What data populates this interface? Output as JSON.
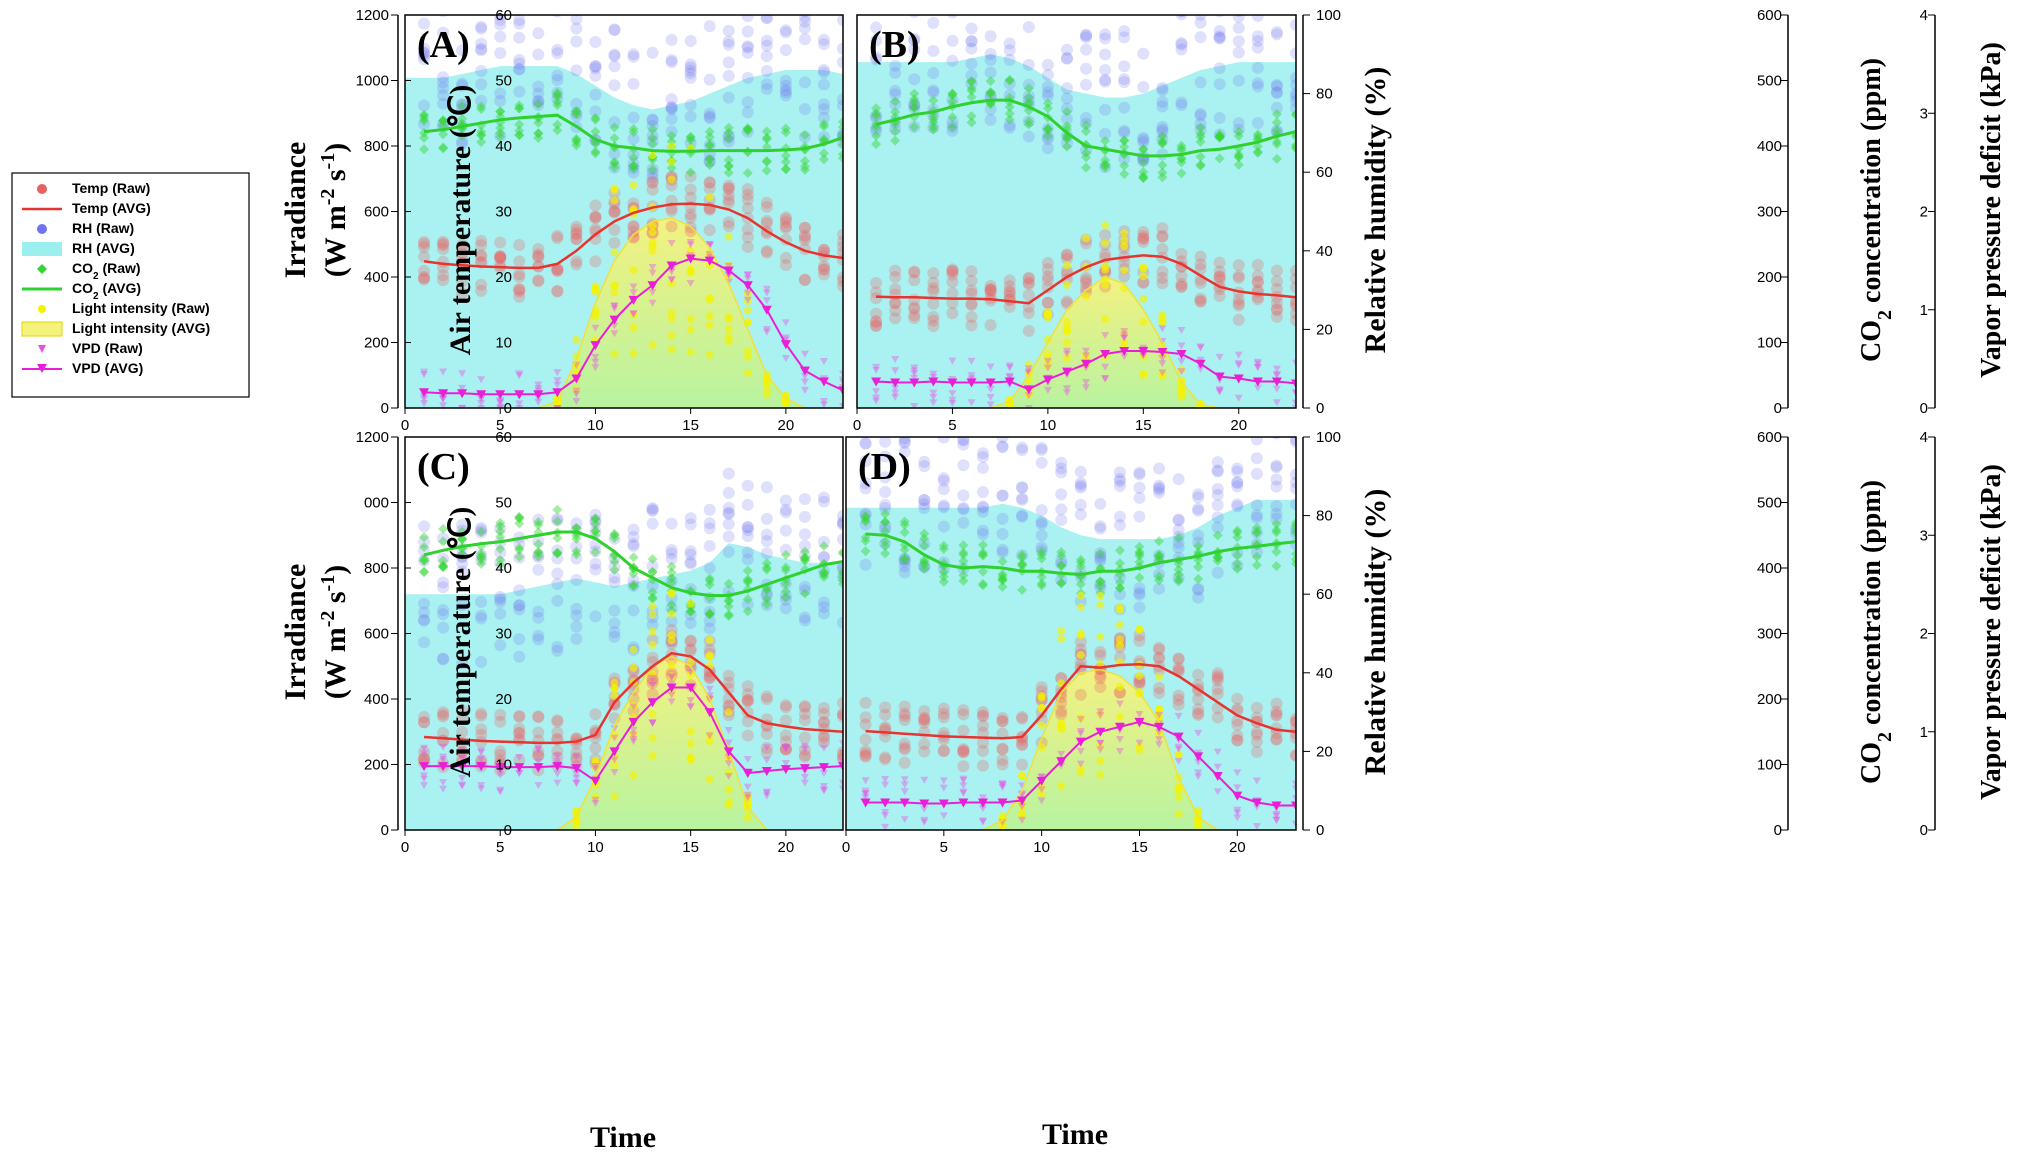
{
  "chart_data": {
    "type": "line",
    "series_styles": {
      "temp": "#e8332e",
      "rh": "#9befef",
      "co2": "#2ed12e",
      "light": "#f3f27a",
      "vpd": "#e91fd8",
      "rh_raw": "#6f73ef",
      "temp_raw": "#e86060",
      "co2_raw": "#33d633",
      "light_raw": "#f4f200",
      "vpd_raw": "#e54ee5"
    },
    "legend": [
      {
        "key": "temp_raw",
        "label": "Temp (Raw)"
      },
      {
        "key": "temp_avg",
        "label": "Temp (AVG)"
      },
      {
        "key": "rh_raw",
        "label": "RH (Raw)"
      },
      {
        "key": "rh_avg",
        "label": "RH (AVG)"
      },
      {
        "key": "co2_raw",
        "label": "CO",
        "sub": "2",
        "suffix": " (Raw)"
      },
      {
        "key": "co2_avg",
        "label": "CO",
        "sub": "2",
        "suffix": " (AVG)"
      },
      {
        "key": "light_raw",
        "label": "Light intensity (Raw)"
      },
      {
        "key": "light_avg",
        "label": "Light intensity (AVG)"
      },
      {
        "key": "vpd_raw",
        "label": "VPD (Raw)"
      },
      {
        "key": "vpd_avg",
        "label": "VPD (AVG)"
      }
    ],
    "axes": {
      "x": {
        "label": "Time",
        "ticks": [
          "0",
          "5",
          "10",
          "15",
          "20"
        ],
        "range": [
          0,
          23
        ]
      },
      "irradiance": {
        "label": "Irradiance",
        "label2_main": "(W m",
        "label2_sup1": "-2",
        "label2_mid": " s",
        "label2_sup2": "-1",
        "label2_end": ")",
        "range": [
          0,
          1200
        ],
        "ticks_top": [
          "0",
          "200",
          "400",
          "600",
          "800",
          "1000",
          "1200"
        ],
        "ticks_bottom": [
          "0",
          "200",
          "400",
          "600",
          "800",
          "000",
          "1200"
        ]
      },
      "temperature": {
        "label": "Air temperature (",
        "label_unit": "℃)",
        "range": [
          0,
          60
        ],
        "ticks": [
          "0",
          "10",
          "20",
          "30",
          "40",
          "50",
          "60"
        ]
      },
      "rh": {
        "label": "Relative humidity (%)",
        "range": [
          0,
          100
        ],
        "ticks": [
          "0",
          "20",
          "40",
          "60",
          "80",
          "100"
        ]
      },
      "co2": {
        "label": "CO",
        "label_sub": "2",
        "label_end": " concentration (ppm)",
        "range": [
          0,
          600
        ],
        "ticks": [
          "0",
          "100",
          "200",
          "300",
          "400",
          "500",
          "600"
        ]
      },
      "vpd": {
        "label": "Vapor pressure deficit (kPa)",
        "range": [
          0,
          4
        ],
        "ticks": [
          "0",
          "1",
          "2",
          "3",
          "4"
        ]
      }
    },
    "panels": [
      {
        "label": "(A)",
        "x": [
          1,
          2,
          3,
          4,
          5,
          6,
          7,
          8,
          9,
          10,
          11,
          12,
          13,
          14,
          15,
          16,
          17,
          18,
          19,
          20,
          21,
          22,
          23
        ],
        "temp": [
          22.4,
          22.0,
          21.8,
          21.6,
          21.5,
          21.4,
          21.4,
          22.0,
          24.0,
          26.5,
          28.5,
          29.8,
          30.6,
          31.1,
          31.2,
          31.0,
          30.3,
          29.0,
          27.0,
          25.3,
          24.0,
          23.3,
          22.9
        ],
        "rh": [
          84,
          84,
          85,
          86,
          87,
          87,
          87,
          87,
          85,
          82,
          79,
          77,
          76,
          77,
          78,
          80,
          82,
          84,
          85,
          86,
          86,
          86,
          85
        ],
        "co2": [
          422,
          425,
          430,
          435,
          440,
          443,
          445,
          447,
          430,
          410,
          400,
          397,
          393,
          392,
          392,
          393,
          393,
          393,
          393,
          394,
          396,
          403,
          413
        ],
        "light": [
          0,
          0,
          0,
          0,
          0,
          0,
          0,
          20,
          150,
          320,
          450,
          530,
          570,
          580,
          555,
          490,
          380,
          240,
          100,
          30,
          0,
          0,
          0
        ],
        "vpd": [
          0.16,
          0.15,
          0.15,
          0.14,
          0.14,
          0.14,
          0.14,
          0.16,
          0.3,
          0.64,
          0.9,
          1.1,
          1.25,
          1.45,
          1.52,
          1.5,
          1.4,
          1.25,
          1.0,
          0.65,
          0.38,
          0.27,
          0.18
        ],
        "rh_band": [
          50,
          100
        ]
      },
      {
        "label": "(B)",
        "x": [
          1,
          2,
          3,
          4,
          5,
          6,
          7,
          8,
          9,
          10,
          11,
          12,
          13,
          14,
          15,
          16,
          17,
          18,
          19,
          20,
          21,
          22,
          23
        ],
        "temp": [
          17.0,
          16.9,
          16.9,
          16.8,
          16.7,
          16.7,
          16.6,
          16.3,
          16.0,
          18.0,
          20.0,
          21.5,
          22.6,
          23.0,
          23.3,
          23.1,
          22.0,
          20.2,
          18.5,
          17.8,
          17.4,
          17.2,
          16.9
        ],
        "rh": [
          88,
          88,
          88,
          88,
          88,
          89,
          90,
          89,
          87,
          84,
          81,
          80,
          79,
          79,
          80,
          82,
          84,
          86,
          87,
          88,
          88,
          88,
          88
        ],
        "co2": [
          433,
          440,
          448,
          452,
          460,
          466,
          470,
          470,
          460,
          445,
          420,
          400,
          395,
          390,
          385,
          385,
          387,
          393,
          395,
          400,
          406,
          415,
          422
        ],
        "light": [
          0,
          0,
          0,
          0,
          0,
          0,
          0,
          20,
          100,
          200,
          300,
          360,
          400,
          380,
          300,
          200,
          80,
          10,
          0,
          0,
          0,
          0,
          0
        ],
        "vpd": [
          0.27,
          0.26,
          0.26,
          0.27,
          0.26,
          0.26,
          0.26,
          0.27,
          0.19,
          0.29,
          0.37,
          0.45,
          0.55,
          0.58,
          0.58,
          0.57,
          0.55,
          0.45,
          0.32,
          0.3,
          0.27,
          0.27,
          0.25
        ],
        "rh_band": [
          60,
          100
        ]
      },
      {
        "label": "(C)",
        "x": [
          1,
          2,
          3,
          4,
          5,
          6,
          7,
          8,
          9,
          10,
          11,
          12,
          13,
          14,
          15,
          16,
          17,
          18,
          19,
          20,
          21,
          22,
          23
        ],
        "temp": [
          14.2,
          14.0,
          13.8,
          13.6,
          13.5,
          13.4,
          13.3,
          13.3,
          13.5,
          14.5,
          19.5,
          22.5,
          25.0,
          27.0,
          26.5,
          24.5,
          21.0,
          17.5,
          16.3,
          15.8,
          15.4,
          15.2,
          15.0
        ],
        "rh": [
          60,
          60,
          60,
          60,
          60,
          61,
          62,
          63,
          64,
          63,
          62,
          63,
          64,
          65,
          66,
          68,
          73,
          72,
          70,
          69,
          68,
          68,
          68
        ],
        "co2": [
          420,
          427,
          433,
          437,
          440,
          445,
          450,
          455,
          455,
          445,
          425,
          400,
          385,
          370,
          362,
          358,
          358,
          365,
          375,
          385,
          395,
          405,
          410
        ],
        "light": [
          0,
          0,
          0,
          0,
          0,
          0,
          0,
          0,
          40,
          160,
          320,
          420,
          500,
          530,
          500,
          400,
          240,
          70,
          0,
          0,
          0,
          0,
          0
        ],
        "vpd": [
          0.65,
          0.65,
          0.65,
          0.65,
          0.64,
          0.64,
          0.64,
          0.65,
          0.63,
          0.5,
          0.8,
          1.1,
          1.3,
          1.45,
          1.45,
          1.2,
          0.8,
          0.58,
          0.6,
          0.62,
          0.63,
          0.64,
          0.65
        ],
        "rh_band": [
          60,
          100
        ]
      },
      {
        "label": "(D)",
        "x": [
          1,
          2,
          3,
          4,
          5,
          6,
          7,
          8,
          9,
          10,
          11,
          12,
          13,
          14,
          15,
          16,
          17,
          18,
          19,
          20,
          21,
          22,
          23
        ],
        "temp": [
          15.1,
          14.9,
          14.7,
          14.5,
          14.3,
          14.2,
          14.1,
          14.0,
          14.2,
          17.5,
          21.5,
          25.0,
          24.8,
          25.2,
          25.3,
          25.0,
          23.5,
          21.5,
          19.5,
          17.5,
          16.3,
          15.3,
          15.0
        ],
        "rh": [
          82,
          82,
          82,
          82,
          82,
          82,
          82,
          83,
          82,
          80,
          77,
          75,
          74,
          74,
          74,
          74,
          75,
          77,
          80,
          82,
          84,
          84,
          84
        ],
        "co2": [
          452,
          450,
          440,
          420,
          405,
          400,
          402,
          400,
          395,
          395,
          392,
          390,
          395,
          395,
          400,
          408,
          413,
          418,
          425,
          430,
          433,
          437,
          440
        ],
        "light": [
          0,
          0,
          0,
          0,
          0,
          0,
          0,
          30,
          120,
          280,
          420,
          480,
          490,
          470,
          420,
          330,
          160,
          40,
          0,
          0,
          0,
          0,
          0
        ],
        "vpd": [
          0.28,
          0.28,
          0.28,
          0.27,
          0.27,
          0.28,
          0.28,
          0.28,
          0.3,
          0.5,
          0.7,
          0.9,
          1.0,
          1.05,
          1.1,
          1.05,
          0.95,
          0.75,
          0.55,
          0.35,
          0.28,
          0.25,
          0.25
        ],
        "rh_band": [
          52,
          100
        ]
      }
    ]
  }
}
